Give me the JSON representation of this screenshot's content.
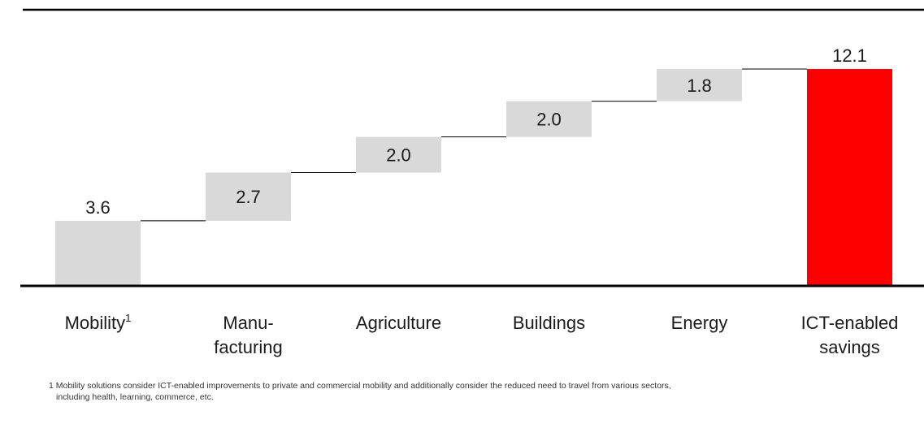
{
  "chart_data": {
    "type": "bar",
    "categories": [
      {
        "line1": "Mobility",
        "line2": "",
        "sup": "1"
      },
      {
        "line1": "Manu-",
        "line2": "facturing",
        "sup": ""
      },
      {
        "line1": "Agriculture",
        "line2": "",
        "sup": ""
      },
      {
        "line1": "Buildings",
        "line2": "",
        "sup": ""
      },
      {
        "line1": "Energy",
        "line2": "",
        "sup": ""
      },
      {
        "line1": "ICT-enabled",
        "line2": "savings",
        "sup": ""
      }
    ],
    "values": [
      3.6,
      2.7,
      2.0,
      2.0,
      1.8,
      12.1
    ],
    "labels": [
      "3.6",
      "2.7",
      "2.0",
      "2.0",
      "1.8",
      "12.1"
    ],
    "total_index": 5,
    "ylim": [
      0,
      12.1
    ],
    "title": "",
    "xlabel": "",
    "ylabel": "",
    "grid": false,
    "colors": {
      "step": "#d9d9d9",
      "total": "#ff0000",
      "axis": "#000000",
      "connector": "#000000"
    }
  },
  "footnote": {
    "line1": "1 Mobility solutions consider ICT-enabled improvements to private and commercial mobility and additionally consider the reduced need to travel from various sectors,",
    "line2": "including health, learning, commerce, etc."
  }
}
